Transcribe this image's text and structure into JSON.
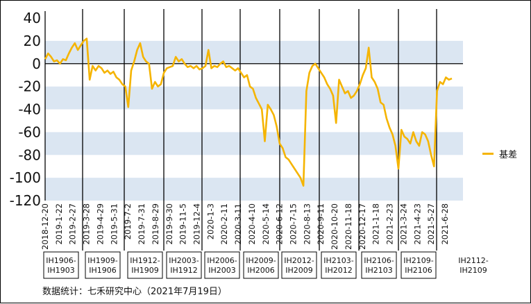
{
  "chart_data": {
    "type": "line",
    "series": [
      {
        "name": "基差",
        "color": "#f5b400"
      }
    ],
    "ylim": [
      -120,
      40
    ],
    "yticks": [
      40,
      20,
      0,
      -20,
      -40,
      -60,
      -80,
      -100,
      -120
    ],
    "x_tick_labels": [
      "2018-12-20",
      "2019-1-22",
      "2019-2-27",
      "2019-3-28",
      "2019-4-29",
      "2019-5-31",
      "2019-7-2",
      "2019-7-31",
      "2019-8-29",
      "2019-9-30",
      "2019-11-5",
      "2019-12-4",
      "2020-1-3",
      "2020-2-11",
      "2020-3-11",
      "2020-4-10",
      "2020-5-14",
      "2020-6-12",
      "2020-7-15",
      "2020-8-13",
      "2020-9-11",
      "2020-10-20",
      "2020-11-18",
      "2020-12-17",
      "2021-1-18",
      "2021-2-23",
      "2021-3-24",
      "2021-4-23",
      "2021-5-27",
      "2021-6-28"
    ],
    "contract_labels": [
      "IH1906-IH1903",
      "IH1909-IH1906",
      "IH1912-IH1909",
      "IH2003-IH1912",
      "IH2006-IH2003",
      "IH2009-IH2006",
      "IH2012-IH2009",
      "IH2103-IH2012",
      "IH2106-IH2103",
      "IH2109-IH2106",
      "IH2112-IH2109"
    ],
    "points": [
      [
        0,
        4
      ],
      [
        1,
        9
      ],
      [
        2,
        6
      ],
      [
        3,
        2
      ],
      [
        4,
        3
      ],
      [
        5,
        0
      ],
      [
        6,
        4
      ],
      [
        7,
        3
      ],
      [
        8,
        9
      ],
      [
        9,
        14
      ],
      [
        10,
        18
      ],
      [
        11,
        12
      ],
      [
        12,
        16
      ],
      [
        13,
        20
      ],
      [
        14,
        22
      ],
      [
        15,
        -14
      ],
      [
        16,
        -2
      ],
      [
        17,
        -6
      ],
      [
        18,
        -2
      ],
      [
        19,
        -4
      ],
      [
        20,
        -8
      ],
      [
        21,
        -6
      ],
      [
        22,
        -9
      ],
      [
        23,
        -7
      ],
      [
        24,
        -12
      ],
      [
        25,
        -14
      ],
      [
        26,
        -18
      ],
      [
        27,
        -20
      ],
      [
        28,
        -38
      ],
      [
        29,
        -6
      ],
      [
        30,
        2
      ],
      [
        31,
        12
      ],
      [
        32,
        18
      ],
      [
        33,
        6
      ],
      [
        34,
        2
      ],
      [
        35,
        0
      ],
      [
        36,
        -22
      ],
      [
        37,
        -16
      ],
      [
        38,
        -20
      ],
      [
        39,
        -18
      ],
      [
        40,
        -8
      ],
      [
        41,
        -4
      ],
      [
        42,
        -3
      ],
      [
        43,
        -2
      ],
      [
        44,
        6
      ],
      [
        45,
        2
      ],
      [
        46,
        4
      ],
      [
        47,
        0
      ],
      [
        48,
        -3
      ],
      [
        49,
        -2
      ],
      [
        50,
        -4
      ],
      [
        51,
        -2
      ],
      [
        52,
        -5
      ],
      [
        53,
        -4
      ],
      [
        54,
        -2
      ],
      [
        55,
        12
      ],
      [
        56,
        -4
      ],
      [
        57,
        -2
      ],
      [
        58,
        -3
      ],
      [
        59,
        0
      ],
      [
        60,
        2
      ],
      [
        61,
        -3
      ],
      [
        62,
        -2
      ],
      [
        63,
        -4
      ],
      [
        64,
        -6
      ],
      [
        65,
        -4
      ],
      [
        66,
        -8
      ],
      [
        67,
        -12
      ],
      [
        68,
        -10
      ],
      [
        69,
        -20
      ],
      [
        70,
        -22
      ],
      [
        71,
        -30
      ],
      [
        72,
        -35
      ],
      [
        73,
        -40
      ],
      [
        74,
        -68
      ],
      [
        75,
        -36
      ],
      [
        76,
        -40
      ],
      [
        77,
        -45
      ],
      [
        78,
        -55
      ],
      [
        79,
        -70
      ],
      [
        80,
        -74
      ],
      [
        81,
        -82
      ],
      [
        82,
        -84
      ],
      [
        83,
        -88
      ],
      [
        84,
        -92
      ],
      [
        85,
        -96
      ],
      [
        86,
        -100
      ],
      [
        87,
        -107
      ],
      [
        88,
        -24
      ],
      [
        89,
        -8
      ],
      [
        90,
        -2
      ],
      [
        91,
        0
      ],
      [
        92,
        -4
      ],
      [
        93,
        -8
      ],
      [
        94,
        -12
      ],
      [
        95,
        -18
      ],
      [
        96,
        -22
      ],
      [
        97,
        -28
      ],
      [
        98,
        -52
      ],
      [
        99,
        -14
      ],
      [
        100,
        -20
      ],
      [
        101,
        -26
      ],
      [
        102,
        -24
      ],
      [
        103,
        -30
      ],
      [
        104,
        -28
      ],
      [
        105,
        -24
      ],
      [
        106,
        -18
      ],
      [
        107,
        -10
      ],
      [
        108,
        -4
      ],
      [
        109,
        14
      ],
      [
        110,
        -12
      ],
      [
        111,
        -16
      ],
      [
        112,
        -22
      ],
      [
        113,
        -34
      ],
      [
        114,
        -36
      ],
      [
        115,
        -48
      ],
      [
        116,
        -56
      ],
      [
        117,
        -62
      ],
      [
        118,
        -72
      ],
      [
        119,
        -92
      ],
      [
        120,
        -58
      ],
      [
        121,
        -64
      ],
      [
        122,
        -66
      ],
      [
        123,
        -70
      ],
      [
        124,
        -60
      ],
      [
        125,
        -68
      ],
      [
        126,
        -72
      ],
      [
        127,
        -60
      ],
      [
        128,
        -62
      ],
      [
        129,
        -68
      ],
      [
        130,
        -80
      ],
      [
        131,
        -90
      ],
      [
        132,
        -24
      ],
      [
        133,
        -16
      ],
      [
        134,
        -18
      ],
      [
        135,
        -12
      ],
      [
        136,
        -14
      ],
      [
        137,
        -13
      ]
    ]
  },
  "legend": {
    "label": "基差"
  },
  "source_note": "数据统计：七禾研究中心（2021年7月19日）"
}
